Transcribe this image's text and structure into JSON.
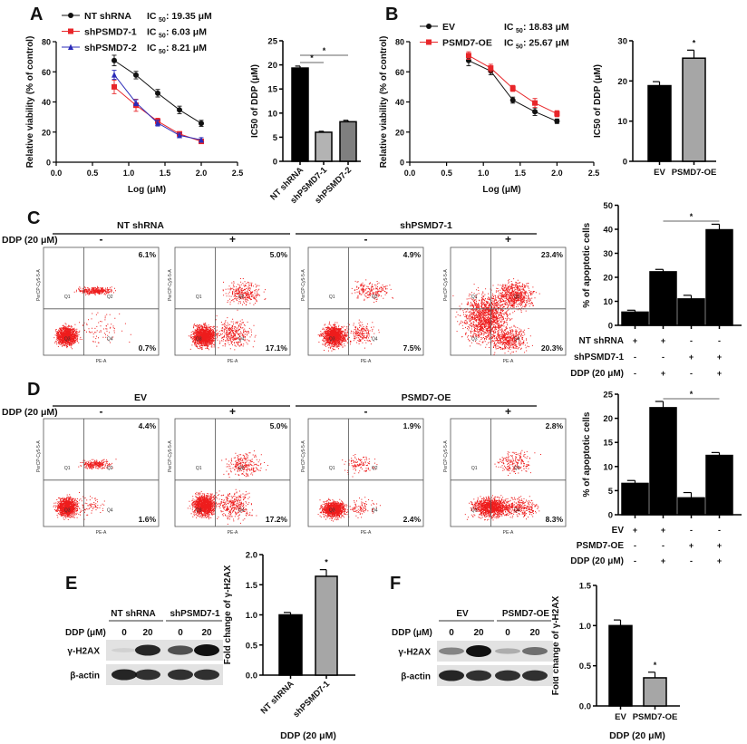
{
  "panels": {
    "A": "A",
    "B": "B",
    "C": "C",
    "D": "D",
    "E": "E",
    "F": "F"
  },
  "chart_data": [
    {
      "id": "A_line",
      "type": "line",
      "xlabel": "Log (μM)",
      "ylabel": "Relative viability (% of control)",
      "xlim": [
        0,
        2.5
      ],
      "ylim": [
        0,
        80
      ],
      "xticks": [
        "0.0",
        "0.5",
        "1.0",
        "1.5",
        "2.0",
        "2.5"
      ],
      "yticks": [
        "0",
        "20",
        "40",
        "60",
        "80"
      ],
      "legend": "top-left",
      "ic_prefix": "IC",
      "ic_sub": "50",
      "series": [
        {
          "name": "NT shRNA",
          "ic50": ": 19.35 μM",
          "color": "#111111",
          "marker": "circle",
          "x": [
            0.8,
            1.1,
            1.4,
            1.7,
            2.0
          ],
          "y": [
            67.5,
            57.8,
            45.8,
            34.7,
            25.8
          ],
          "err": [
            3.5,
            2.5,
            2.5,
            2.5,
            2
          ]
        },
        {
          "name": "shPSMD7-1",
          "ic50": ": 6.03 μM",
          "color": "#e8262a",
          "marker": "square",
          "x": [
            0.8,
            1.1,
            1.4,
            1.7,
            2.0
          ],
          "y": [
            50,
            37.8,
            27.2,
            18.8,
            13.8
          ],
          "err": [
            4.5,
            4,
            2,
            1.5,
            1.5
          ]
        },
        {
          "name": "shPSMD7-2",
          "ic50": ": 8.21 μM",
          "color": "#2b2bb8",
          "marker": "triangle",
          "x": [
            0.8,
            1.1,
            1.4,
            1.7,
            2.0
          ],
          "y": [
            58,
            39.5,
            26,
            17.8,
            14.8
          ],
          "err": [
            3,
            2,
            2,
            1.5,
            1.5
          ]
        }
      ]
    },
    {
      "id": "A_bar",
      "type": "bar",
      "ylabel": "IC50 of DDP (μM)",
      "ylim": [
        0,
        25
      ],
      "yticks": [
        "0",
        "5",
        "10",
        "15",
        "20",
        "25"
      ],
      "categories": [
        "NT shRNA",
        "shPSMD7-1",
        "shPSMD7-2"
      ],
      "values": [
        19.35,
        6.03,
        8.21
      ],
      "err": [
        0.4,
        0.2,
        0.3
      ],
      "colors": [
        "#000000",
        "#b3b3b3",
        "#7f7f7f"
      ],
      "significance": [
        {
          "from": 0,
          "to": 1,
          "label": "*"
        },
        {
          "from": 0,
          "to": 2,
          "label": "*"
        }
      ]
    },
    {
      "id": "B_line",
      "type": "line",
      "xlabel": "Log (μM)",
      "ylabel": "Relative viability (% of control)",
      "xlim": [
        0,
        2.5
      ],
      "ylim": [
        0,
        80
      ],
      "xticks": [
        "0.0",
        "0.5",
        "1.0",
        "1.5",
        "2.0",
        "2.5"
      ],
      "yticks": [
        "0",
        "20",
        "40",
        "60",
        "80"
      ],
      "legend": "top-left",
      "ic_prefix": "IC",
      "ic_sub": "50",
      "series": [
        {
          "name": "EV",
          "ic50": ": 18.83 μM",
          "color": "#111111",
          "marker": "circle",
          "x": [
            0.8,
            1.1,
            1.4,
            1.7,
            2.0
          ],
          "y": [
            67.5,
            60.5,
            41.2,
            33.5,
            27.2
          ],
          "err": [
            3.5,
            2.5,
            2,
            2.5,
            1.5
          ]
        },
        {
          "name": "PSMD7-OE",
          "ic50": ": 25.67 μM",
          "color": "#e8262a",
          "marker": "square",
          "x": [
            0.8,
            1.1,
            1.4,
            1.7,
            2.0
          ],
          "y": [
            70.8,
            62.5,
            49,
            39.3,
            32.2
          ],
          "err": [
            2.5,
            2.5,
            2,
            3,
            2
          ]
        }
      ]
    },
    {
      "id": "B_bar",
      "type": "bar",
      "ylabel": "IC50 of DDP (μM)",
      "ylim": [
        0,
        30
      ],
      "yticks": [
        "0",
        "10",
        "20",
        "30"
      ],
      "categories": [
        "EV",
        "PSMD7-OE"
      ],
      "values": [
        18.83,
        25.67
      ],
      "err": [
        1.0,
        2.0
      ],
      "colors": [
        "#000000",
        "#a6a6a6"
      ],
      "significance": [
        {
          "from": 1,
          "to": 1,
          "label": "*"
        }
      ]
    },
    {
      "id": "C_bar",
      "type": "bar",
      "ylabel": "% of apoptotic cells",
      "ylim": [
        0,
        50
      ],
      "yticks": [
        "0",
        "10",
        "20",
        "30",
        "40",
        "50"
      ],
      "values": [
        5.5,
        22.3,
        11.0,
        39.8
      ],
      "err": [
        0.8,
        1.0,
        1.5,
        2.3
      ],
      "colors": [
        "#000000",
        "#000000",
        "#000000",
        "#000000"
      ],
      "significance": [
        {
          "from": 1,
          "to": 3,
          "label": "*"
        }
      ],
      "conditions": [
        {
          "label": "NT shRNA",
          "values": [
            "+",
            "+",
            "-",
            "-"
          ]
        },
        {
          "label": "shPSMD7-1",
          "values": [
            "-",
            "-",
            "+",
            "+"
          ]
        },
        {
          "label": "DDP (20 μM)",
          "values": [
            "-",
            "+",
            "-",
            "+"
          ]
        }
      ]
    },
    {
      "id": "D_bar",
      "type": "bar",
      "ylabel": "% of apoptotic cells",
      "ylim": [
        0,
        25
      ],
      "yticks": [
        "0",
        "5",
        "10",
        "15",
        "20",
        "25"
      ],
      "values": [
        6.5,
        22.2,
        3.5,
        12.3
      ],
      "err": [
        0.6,
        1.3,
        1.1,
        0.6
      ],
      "colors": [
        "#000000",
        "#000000",
        "#000000",
        "#000000"
      ],
      "significance": [
        {
          "from": 1,
          "to": 3,
          "label": "*"
        }
      ],
      "conditions": [
        {
          "label": "EV",
          "values": [
            "+",
            "+",
            "-",
            "-"
          ]
        },
        {
          "label": "PSMD7-OE",
          "values": [
            "-",
            "-",
            "+",
            "+"
          ]
        },
        {
          "label": "DDP (20 μM)",
          "values": [
            "-",
            "+",
            "-",
            "+"
          ]
        }
      ]
    },
    {
      "id": "E_bar",
      "type": "bar",
      "ylabel": "Fold change of γ-H2AX",
      "xlabel": "DDP (20 μM)",
      "ylim": [
        0,
        2
      ],
      "yticks": [
        "0.0",
        "0.5",
        "1.0",
        "1.5",
        "2.0"
      ],
      "categories": [
        "NT shRNA",
        "shPSMD7-1"
      ],
      "values": [
        1.0,
        1.64
      ],
      "err": [
        0.04,
        0.11
      ],
      "colors": [
        "#000000",
        "#a6a6a6"
      ],
      "significance": [
        {
          "from": 1,
          "to": 1,
          "label": "*"
        }
      ]
    },
    {
      "id": "F_bar",
      "type": "bar",
      "ylabel": "Fold change of γ-H2AX",
      "xlabel": "DDP (20 μM)",
      "ylim": [
        0,
        1.5
      ],
      "yticks": [
        "0.0",
        "0.5",
        "1.0",
        "1.5"
      ],
      "categories": [
        "EV",
        "PSMD7-OE"
      ],
      "values": [
        1.0,
        0.35
      ],
      "err": [
        0.07,
        0.07
      ],
      "colors": [
        "#000000",
        "#a6a6a6"
      ],
      "significance": [
        {
          "from": 1,
          "to": 1,
          "label": "*"
        }
      ]
    }
  ],
  "flow": [
    {
      "groups": [
        "NT shRNA",
        "shPSMD7-1"
      ],
      "ddp_label": "DDP (20 μM)",
      "ddp_signs": [
        "-",
        "+",
        "-",
        "+"
      ],
      "plots": [
        {
          "upper_right": "6.1%",
          "lower_right": "0.7%"
        },
        {
          "upper_right": "5.0%",
          "lower_right": "17.1%"
        },
        {
          "upper_right": "4.9%",
          "lower_right": "7.5%"
        },
        {
          "upper_right": "23.4%",
          "lower_right": "20.3%"
        }
      ]
    },
    {
      "groups": [
        "EV",
        "PSMD7-OE"
      ],
      "ddp_label": "DDP (20 μM)",
      "ddp_signs": [
        "-",
        "+",
        "-",
        "+"
      ],
      "plots": [
        {
          "upper_right": "4.4%",
          "lower_right": "1.6%"
        },
        {
          "upper_right": "5.0%",
          "lower_right": "17.2%"
        },
        {
          "upper_right": "1.9%",
          "lower_right": "2.4%"
        },
        {
          "upper_right": "2.8%",
          "lower_right": "8.3%"
        }
      ]
    }
  ],
  "flow_axes": {
    "x": "PE-A",
    "y": "PerCP-Cy5-5-A",
    "quadrants": [
      "Q1",
      "Q2",
      "Q3",
      "Q4"
    ]
  },
  "blots": [
    {
      "groups": [
        "NT shRNA",
        "shPSMD7-1"
      ],
      "ddp_label": "DDP (μM)",
      "lanes": [
        "0",
        "20",
        "0",
        "20"
      ],
      "rows": [
        {
          "label": "γ-H2AX",
          "band_intensity": [
            0.08,
            0.9,
            0.7,
            1.0
          ]
        },
        {
          "label": "β-actin",
          "band_intensity": [
            0.9,
            0.85,
            0.85,
            0.85
          ]
        }
      ]
    },
    {
      "groups": [
        "EV",
        "PSMD7-OE"
      ],
      "ddp_label": "DDP (μM)",
      "lanes": [
        "0",
        "20",
        "0",
        "20"
      ],
      "rows": [
        {
          "label": "γ-H2AX",
          "band_intensity": [
            0.45,
            1.0,
            0.25,
            0.55
          ]
        },
        {
          "label": "β-actin",
          "band_intensity": [
            0.9,
            0.85,
            0.85,
            0.85
          ]
        }
      ]
    }
  ]
}
